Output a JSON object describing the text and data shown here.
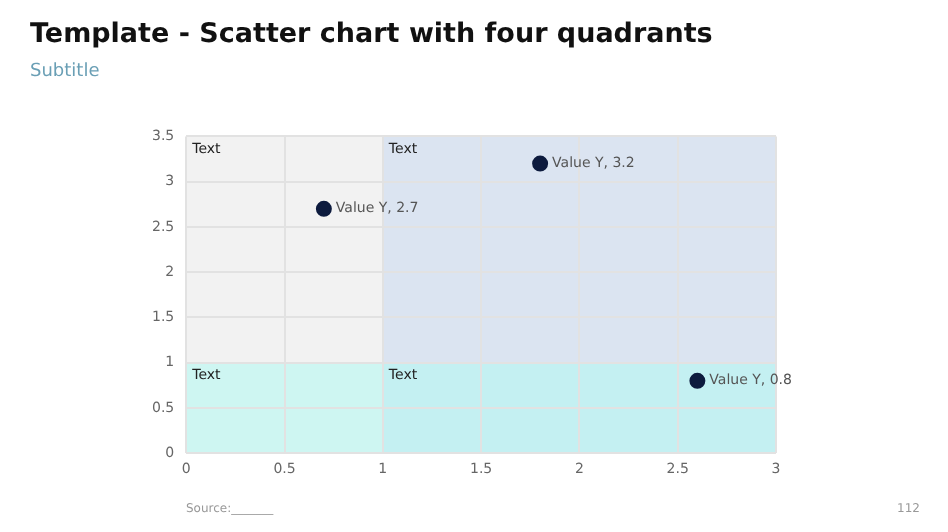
{
  "chart_data": {
    "type": "scatter",
    "title": "Template - Scatter chart with four quadrants",
    "subtitle": "Subtitle",
    "x": [
      0.7,
      1.8,
      2.6
    ],
    "values": [
      2.7,
      3.2,
      0.8
    ],
    "color": "#0d1b3e",
    "marker": "circle",
    "value_labels": [
      "Value Y, 2.7",
      "Value Y, 3.2",
      "Value Y, 0.8"
    ],
    "xlim": [
      0,
      3
    ],
    "xticks": [
      0,
      0.5,
      1,
      1.5,
      2,
      2.5,
      3
    ],
    "ylim": [
      0,
      3.5
    ],
    "yticks": [
      0,
      0.5,
      1,
      1.5,
      2,
      2.5,
      3,
      3.5
    ],
    "grid": true,
    "bands": [
      {
        "axis": "x",
        "from": 1,
        "to": 3,
        "color": "#c9d8f0"
      },
      {
        "axis": "y",
        "from": 0,
        "to": 1,
        "color": "#b0faf2"
      }
    ],
    "annotations": [
      "Text",
      "Text",
      "Text",
      "Text",
      "Source:_______",
      "112"
    ]
  }
}
